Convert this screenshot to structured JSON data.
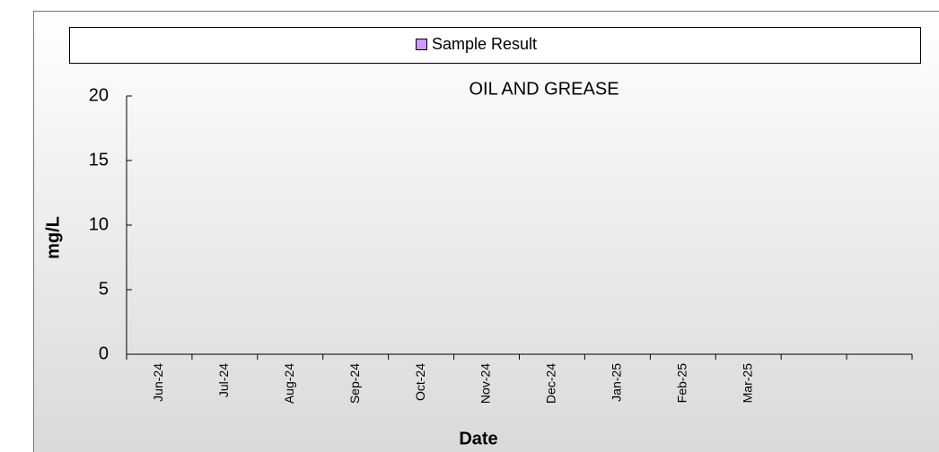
{
  "chart_data": {
    "type": "bar",
    "title": "OIL AND GREASE",
    "x_label": "Date",
    "y_label": "mg/L",
    "categories": [
      "Jun-24",
      "Jul-24",
      "Aug-24",
      "Sep-24",
      "Oct-24",
      "Nov-24",
      "Dec-24",
      "Jan-25",
      "Feb-25",
      "Mar-25",
      null,
      null
    ],
    "series": [
      {
        "name": "Sample Result",
        "color": "#cc99ff",
        "values": [
          null,
          null,
          null,
          null,
          null,
          null,
          null,
          null,
          null,
          null,
          null,
          null
        ]
      }
    ],
    "ylim": [
      0,
      20
    ],
    "yticks": [
      0,
      5,
      10,
      15,
      20
    ],
    "grid": false,
    "legend": "top"
  }
}
